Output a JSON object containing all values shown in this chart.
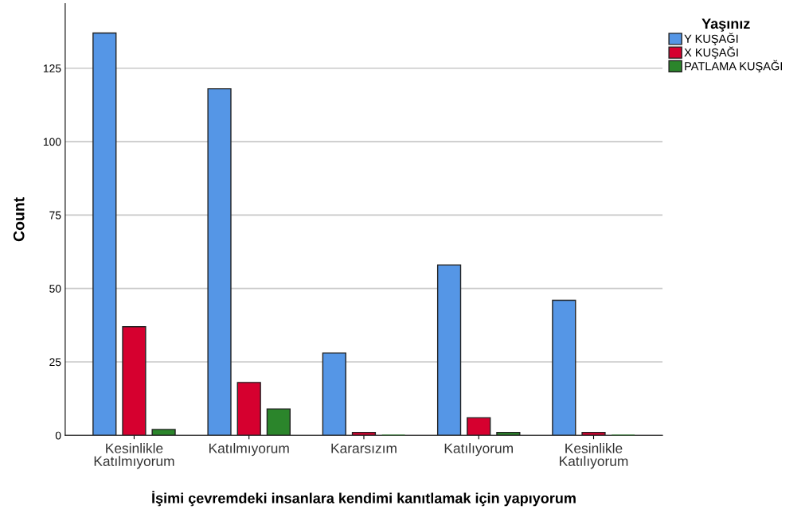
{
  "chart_data": {
    "type": "bar",
    "categories": [
      "Kesinlikle\nKatılmıyorum",
      "Katılmıyorum",
      "Kararsızım",
      "Katılıyorum",
      "Kesinlikle\nKatılıyorum"
    ],
    "series": [
      {
        "name": "Y KUŞAĞI",
        "color": "#5596e6",
        "values": [
          137,
          118,
          28,
          58,
          46
        ]
      },
      {
        "name": "X KUŞAĞI",
        "color": "#d6002f",
        "values": [
          37,
          18,
          1,
          6,
          1
        ]
      },
      {
        "name": "PATLAMA KUŞAĞI",
        "color": "#2b852b",
        "values": [
          2,
          9,
          0,
          1,
          0
        ]
      }
    ],
    "xlabel": "İşimi çevremdeki insanlara kendimi kanıtlamak için yapıyorum",
    "ylabel": "Count",
    "legend_title": "Yaşınız",
    "ylim": [
      0,
      147
    ],
    "yticks": [
      0,
      25,
      50,
      75,
      100,
      125
    ],
    "grid": "y",
    "legend": "top right"
  }
}
